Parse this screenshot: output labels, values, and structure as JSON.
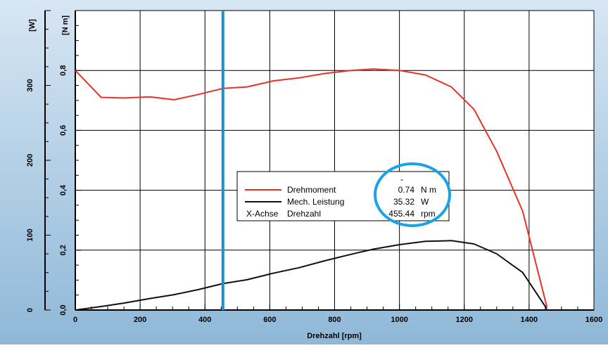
{
  "chart_data": {
    "type": "line",
    "xlabel": "Drehzahl [rpm]",
    "xlim": [
      0,
      1600
    ],
    "x_ticks": [
      "0",
      "200",
      "400",
      "600",
      "800",
      "1000",
      "1200",
      "1400",
      "1600"
    ],
    "left_axis": {
      "label": "[W]",
      "lim": [
        0,
        400
      ],
      "ticks": [
        "0",
        "100",
        "200",
        "300"
      ]
    },
    "right_axis": {
      "label": "[N m]",
      "lim": [
        0,
        1.0
      ],
      "ticks": [
        "0,0",
        "0,2",
        "0,4",
        "0,6",
        "0,8"
      ]
    },
    "grid": true,
    "series": [
      {
        "name": "Drehmoment",
        "axis": "torque",
        "color": "#e8312a",
        "points": [
          [
            0,
            0.8
          ],
          [
            80,
            0.71
          ],
          [
            150,
            0.708
          ],
          [
            230,
            0.712
          ],
          [
            305,
            0.702
          ],
          [
            380,
            0.72
          ],
          [
            455.44,
            0.74
          ],
          [
            530,
            0.745
          ],
          [
            610,
            0.765
          ],
          [
            690,
            0.775
          ],
          [
            770,
            0.79
          ],
          [
            850,
            0.8
          ],
          [
            920,
            0.805
          ],
          [
            1000,
            0.8
          ],
          [
            1080,
            0.785
          ],
          [
            1160,
            0.745
          ],
          [
            1230,
            0.67
          ],
          [
            1300,
            0.53
          ],
          [
            1380,
            0.33
          ],
          [
            1455,
            0.01
          ]
        ]
      },
      {
        "name": "Mech. Leistung",
        "axis": "power",
        "color": "#111111",
        "points": [
          [
            0,
            0
          ],
          [
            80,
            4.7
          ],
          [
            150,
            9.3
          ],
          [
            230,
            15.4
          ],
          [
            305,
            20.6
          ],
          [
            380,
            27.3
          ],
          [
            455.44,
            35.32
          ],
          [
            530,
            40.5
          ],
          [
            610,
            49.1
          ],
          [
            690,
            56.5
          ],
          [
            770,
            65.8
          ],
          [
            850,
            74.4
          ],
          [
            920,
            81.3
          ],
          [
            1000,
            87.3
          ],
          [
            1080,
            91.7
          ],
          [
            1160,
            92.7
          ],
          [
            1230,
            88.3
          ],
          [
            1300,
            75.1
          ],
          [
            1380,
            50.1
          ],
          [
            1455,
            1.5
          ]
        ]
      }
    ],
    "cursor": {
      "x": 455.44,
      "color": "#1f8fd1"
    },
    "legend": {
      "placement": "center",
      "header": "-",
      "rows": [
        {
          "label": "Drehmoment",
          "value": "0.74",
          "unit": "N m",
          "color": "#e8312a"
        },
        {
          "label": "Mech. Leistung",
          "value": "35.32",
          "unit": "W",
          "color": "#111111"
        },
        {
          "prefix": "X-Achse",
          "label": "Drehzahl",
          "value": "455.44",
          "unit": "rpm"
        }
      ]
    },
    "highlight_color": "#1aa3e8",
    "background": "#8eb8d9"
  }
}
